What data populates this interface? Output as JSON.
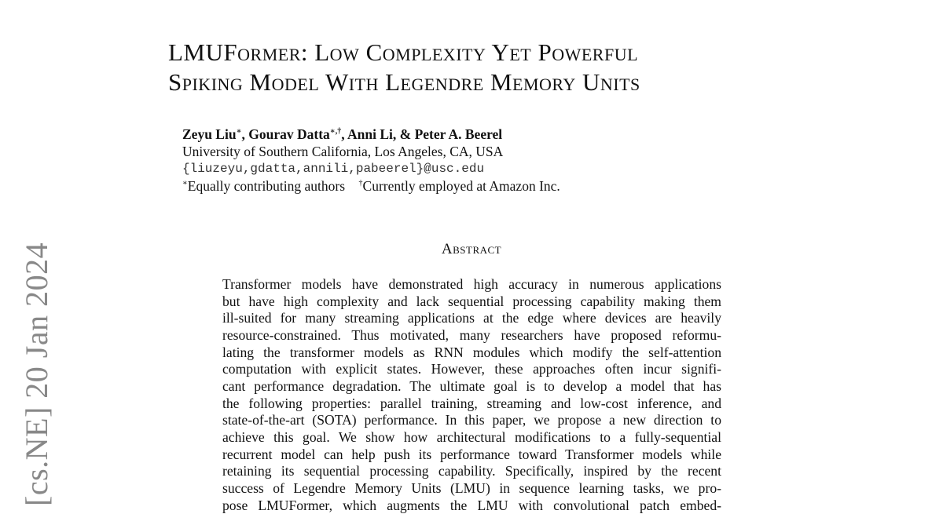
{
  "arxiv_stamp": "[cs.NE]  20 Jan 2024",
  "title": [
    "LMUFormer: Low Complexity Yet Powerful",
    "Spiking Model With Legendre Memory Units"
  ],
  "authors": {
    "names": [
      {
        "name": "Zeyu Liu",
        "mark": "∗"
      },
      {
        "name": "Gourav Datta",
        "mark": "∗,†"
      },
      {
        "name": "Anni Li, & Peter A. Beerel",
        "mark": ""
      }
    ],
    "affiliation": "University of Southern California, Los Angeles, CA, USA",
    "email": "{liuzeyu,gdatta,annili,pabeerel}@usc.edu",
    "note_equal": "Equally contributing authors",
    "note_amazon": "Currently employed at Amazon Inc."
  },
  "abstract_heading": "Abstract",
  "abstract_lines": [
    "Transformer models have demonstrated high accuracy in numerous applications",
    "but have high complexity and lack sequential processing capability making them",
    "ill-suited for many streaming applications at the edge where devices are heavily",
    "resource-constrained. Thus motivated, many researchers have proposed reformu-",
    "lating the transformer models as RNN modules which modify the self-attention",
    "computation with explicit states. However, these approaches often incur signifi-",
    "cant performance degradation. The ultimate goal is to develop a model that has",
    "the following properties: parallel training, streaming and low-cost inference, and",
    "state-of-the-art (SOTA) performance. In this paper, we propose a new direction to",
    "achieve this goal. We show how architectural modifications to a fully-sequential",
    "recurrent model can help push its performance toward Transformer models while",
    "retaining its sequential processing capability. Specifically, inspired by the recent",
    "success of Legendre Memory Units (LMU) in sequence learning tasks, we pro-",
    "pose LMUFormer, which augments the LMU with convolutional patch embed-"
  ]
}
